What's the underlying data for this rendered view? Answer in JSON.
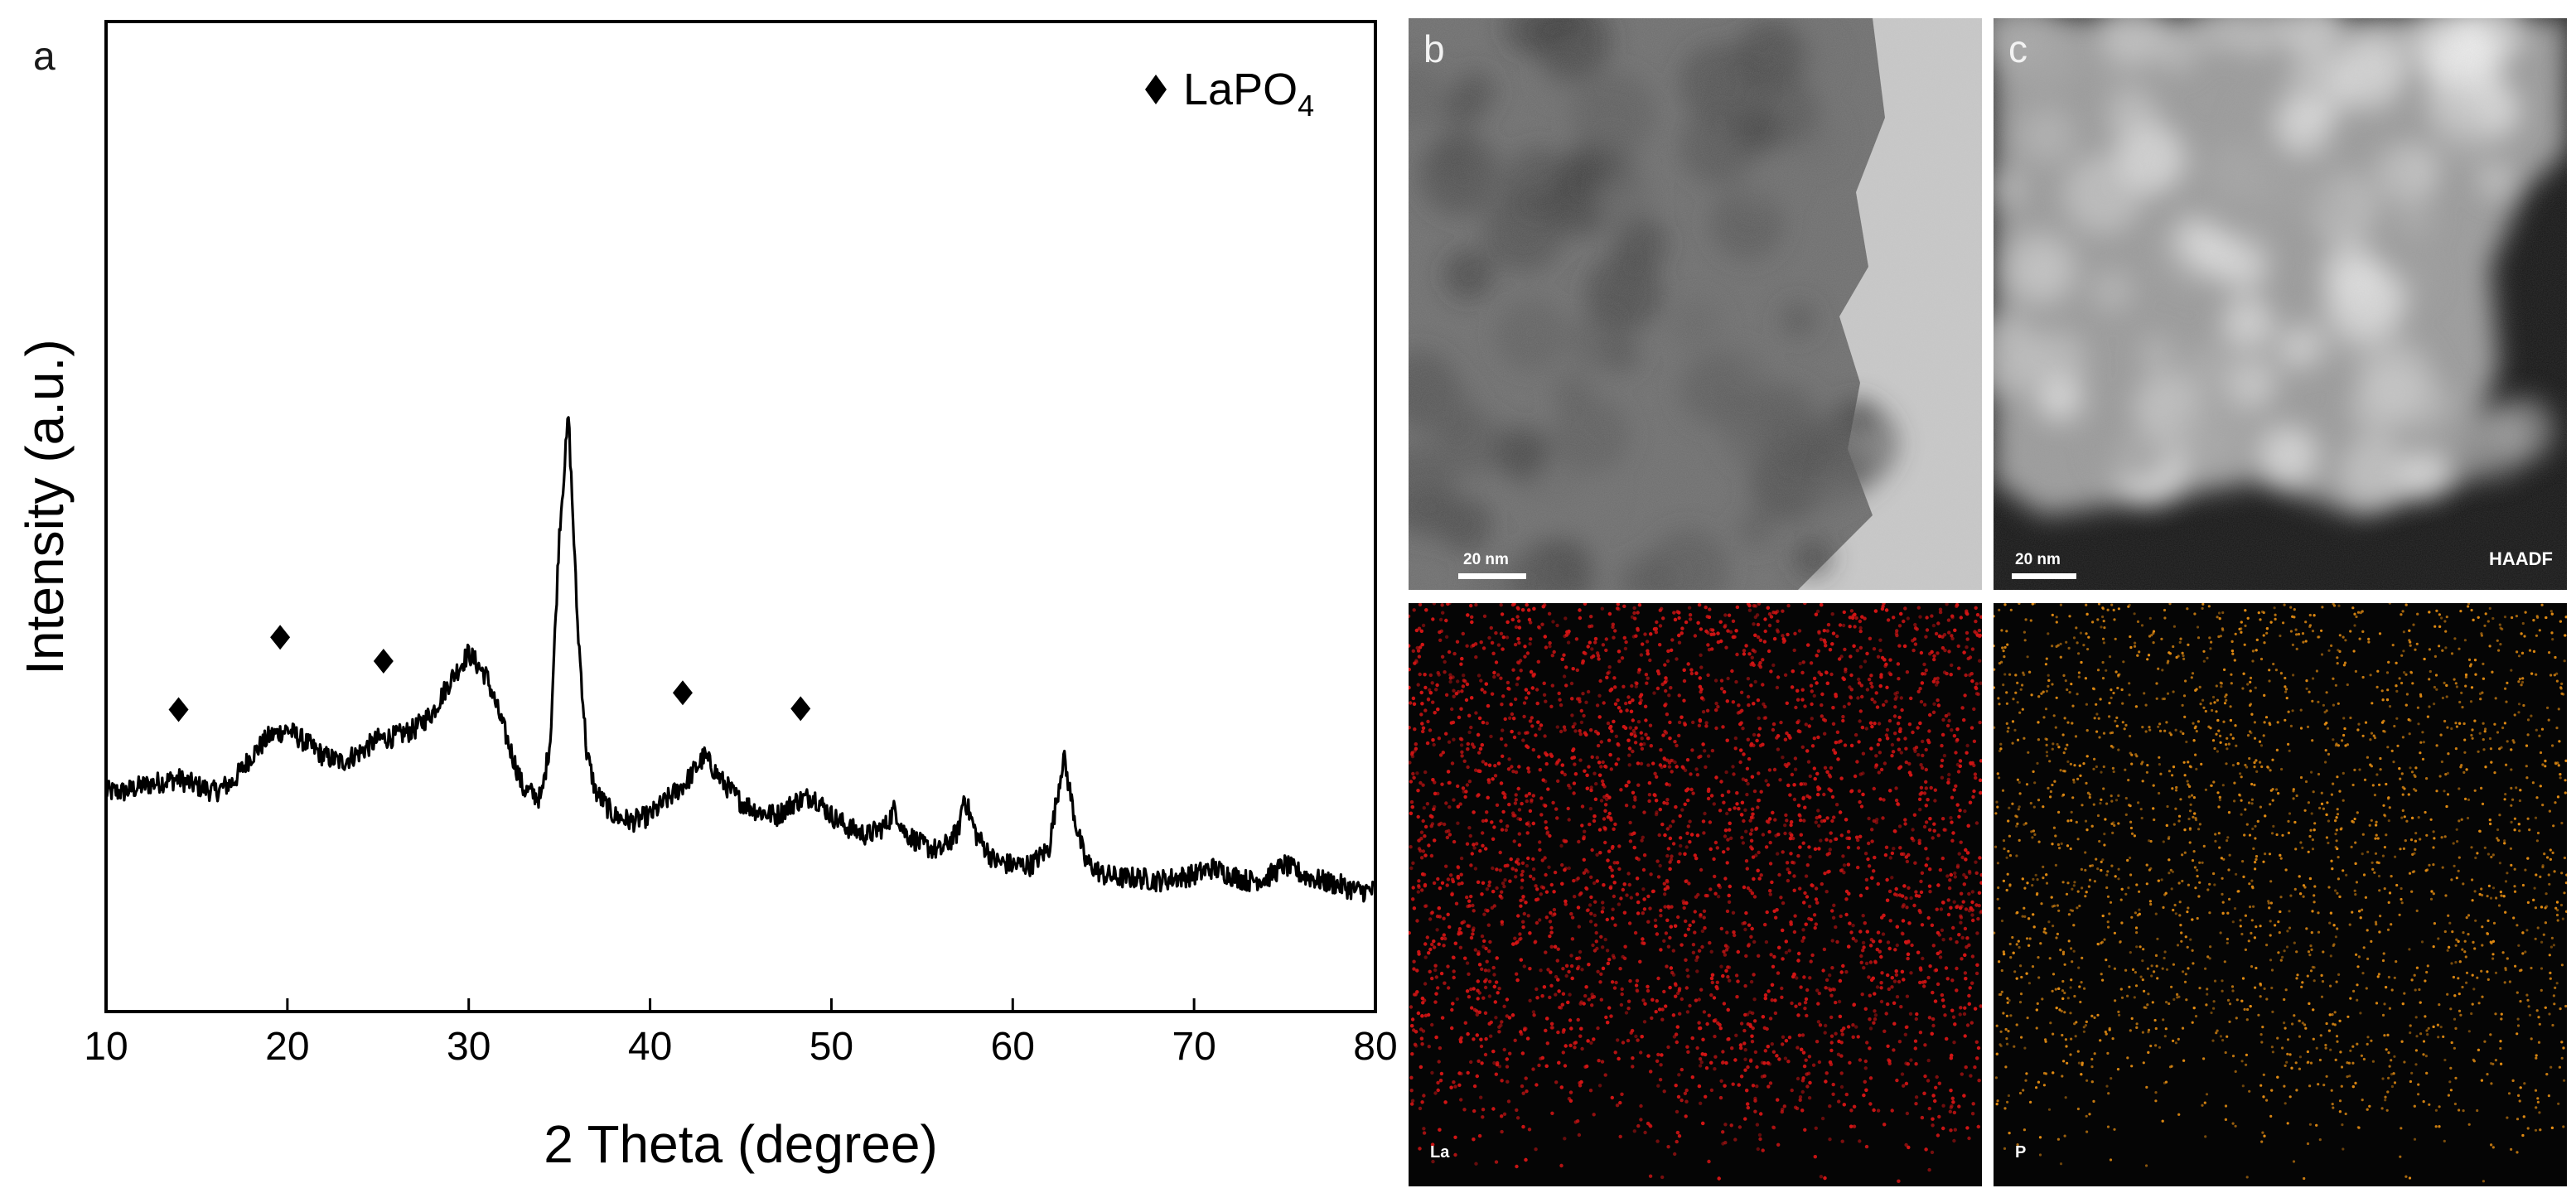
{
  "panel_a": {
    "letter": "a",
    "legend_label": "LaPO",
    "legend_subscript": "4"
  },
  "panel_b": {
    "letter": "b",
    "scale_label": "20 nm"
  },
  "panel_c": {
    "letter": "c",
    "scale_label": "20 nm",
    "mode_label": "HAADF"
  },
  "panel_la": {
    "element_label": "La",
    "dot_color": "#d21515"
  },
  "panel_p": {
    "element_label": "P",
    "dot_color": "#e08a12"
  },
  "chart_data": {
    "type": "line",
    "title": "",
    "xlabel": "2 Theta (degree)",
    "ylabel": "Intensity (a.u.)",
    "xlim": [
      10,
      80
    ],
    "xticks": [
      10,
      20,
      30,
      40,
      50,
      60,
      70,
      80
    ],
    "y_tick_labels_shown": false,
    "grid": false,
    "legend_placement": "top-right",
    "line_color": "#000000",
    "series": [
      {
        "x": [
          10,
          11,
          12,
          13,
          14,
          15,
          16,
          17,
          18,
          19,
          20,
          21,
          22,
          23,
          24,
          25,
          26,
          27,
          28,
          29,
          30,
          31,
          32,
          33,
          34,
          34.5,
          35,
          35.5,
          36,
          36.5,
          37,
          38,
          39,
          40,
          41,
          42,
          43,
          44,
          45,
          46,
          47,
          48,
          49,
          50,
          51,
          52,
          53,
          53.5,
          54,
          55,
          56,
          57,
          57.3,
          58,
          59,
          60,
          61,
          62,
          62.8,
          63.5,
          64,
          65,
          66,
          67,
          68,
          69,
          70,
          71,
          72,
          73,
          74,
          75,
          76,
          77,
          78,
          79,
          80
        ],
        "y": [
          0.222,
          0.222,
          0.228,
          0.232,
          0.235,
          0.228,
          0.222,
          0.232,
          0.258,
          0.278,
          0.285,
          0.272,
          0.258,
          0.252,
          0.262,
          0.275,
          0.278,
          0.285,
          0.302,
          0.335,
          0.362,
          0.338,
          0.282,
          0.225,
          0.215,
          0.275,
          0.485,
          0.602,
          0.392,
          0.262,
          0.222,
          0.198,
          0.192,
          0.198,
          0.215,
          0.232,
          0.258,
          0.232,
          0.212,
          0.202,
          0.198,
          0.212,
          0.218,
          0.198,
          0.185,
          0.178,
          0.188,
          0.205,
          0.182,
          0.168,
          0.162,
          0.182,
          0.218,
          0.178,
          0.152,
          0.148,
          0.148,
          0.165,
          0.258,
          0.188,
          0.152,
          0.138,
          0.135,
          0.135,
          0.132,
          0.135,
          0.138,
          0.145,
          0.138,
          0.132,
          0.135,
          0.148,
          0.138,
          0.132,
          0.128,
          0.122,
          0.122
        ]
      }
    ],
    "marker_positions": [
      {
        "x": 14,
        "y": 0.305
      },
      {
        "x": 19.6,
        "y": 0.378
      },
      {
        "x": 25.3,
        "y": 0.354
      },
      {
        "x": 41.8,
        "y": 0.322
      },
      {
        "x": 48.3,
        "y": 0.306
      }
    ]
  }
}
